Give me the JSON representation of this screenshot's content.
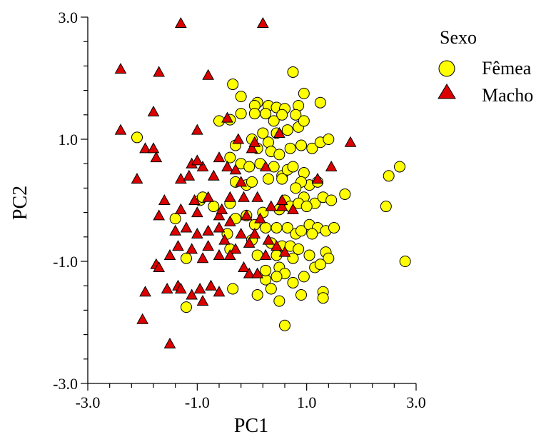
{
  "chart_data": {
    "type": "scatter",
    "title": "",
    "xlabel": "PC1",
    "ylabel": "PC2",
    "xlim": [
      -3.0,
      3.0
    ],
    "ylim": [
      -3.0,
      3.0
    ],
    "x_ticks": [
      -3.0,
      -1.0,
      1.0,
      3.0
    ],
    "y_ticks": [
      -3.0,
      -1.0,
      1.0,
      3.0
    ],
    "x_tick_labels": [
      "-3.0",
      "-1.0",
      "1.0",
      "3.0"
    ],
    "y_tick_labels": [
      "-3.0",
      "-1.0",
      "1.0",
      "3.0"
    ],
    "grid": false,
    "legend": {
      "title": "Sexo",
      "position": "top-right"
    },
    "series": [
      {
        "name": "Fêmea",
        "marker": "circle",
        "color": "#FFFF00",
        "points": [
          [
            -2.1,
            1.03
          ],
          [
            -0.35,
            1.9
          ],
          [
            -0.2,
            1.7
          ],
          [
            0.1,
            1.6
          ],
          [
            0.05,
            1.55
          ],
          [
            0.3,
            1.55
          ],
          [
            0.45,
            1.52
          ],
          [
            0.6,
            1.5
          ],
          [
            0.95,
            1.75
          ],
          [
            1.25,
            1.6
          ],
          [
            0.85,
            1.55
          ],
          [
            0.75,
            2.1
          ],
          [
            -0.6,
            1.3
          ],
          [
            -0.4,
            1.32
          ],
          [
            -0.2,
            1.42
          ],
          [
            0.05,
            1.42
          ],
          [
            0.25,
            1.42
          ],
          [
            0.4,
            1.3
          ],
          [
            0.55,
            1.4
          ],
          [
            0.8,
            1.4
          ],
          [
            0.85,
            1.2
          ],
          [
            0.65,
            1.15
          ],
          [
            0.95,
            1.3
          ],
          [
            0.2,
            1.1
          ],
          [
            0.45,
            1.1
          ],
          [
            0.3,
            0.95
          ],
          [
            -0.3,
            0.9
          ],
          [
            0.0,
            1.0
          ],
          [
            0.1,
            0.85
          ],
          [
            0.35,
            0.8
          ],
          [
            0.5,
            0.75
          ],
          [
            0.7,
            0.85
          ],
          [
            0.9,
            0.9
          ],
          [
            1.1,
            0.85
          ],
          [
            1.25,
            0.95
          ],
          [
            1.4,
            1.0
          ],
          [
            -0.4,
            0.7
          ],
          [
            -0.2,
            0.6
          ],
          [
            -0.05,
            0.55
          ],
          [
            0.15,
            0.6
          ],
          [
            0.4,
            0.55
          ],
          [
            0.55,
            0.4
          ],
          [
            0.65,
            0.5
          ],
          [
            0.75,
            0.55
          ],
          [
            0.95,
            0.45
          ],
          [
            1.05,
            0.25
          ],
          [
            1.2,
            0.3
          ],
          [
            0.9,
            0.3
          ],
          [
            -0.3,
            0.3
          ],
          [
            -0.1,
            0.25
          ],
          [
            0.0,
            0.3
          ],
          [
            0.3,
            0.35
          ],
          [
            0.55,
            0.35
          ],
          [
            0.8,
            0.2
          ],
          [
            0.95,
            0.05
          ],
          [
            1.15,
            -0.05
          ],
          [
            1.3,
            0.05
          ],
          [
            1.45,
            0.0
          ],
          [
            1.7,
            0.1
          ],
          [
            0.6,
            0.0
          ],
          [
            -0.95,
            0.0
          ],
          [
            -0.9,
            0.05
          ],
          [
            -1.4,
            -0.3
          ],
          [
            -0.7,
            -0.1
          ],
          [
            -0.4,
            -0.05
          ],
          [
            -0.3,
            -0.3
          ],
          [
            -0.1,
            -0.25
          ],
          [
            0.2,
            -0.2
          ],
          [
            0.5,
            -0.15
          ],
          [
            0.7,
            -0.1
          ],
          [
            0.85,
            -0.05
          ],
          [
            1.0,
            -0.1
          ],
          [
            0.45,
            -0.45
          ],
          [
            0.65,
            -0.45
          ],
          [
            0.8,
            -0.55
          ],
          [
            0.9,
            -0.5
          ],
          [
            1.05,
            -0.4
          ],
          [
            1.2,
            -0.45
          ],
          [
            1.35,
            -0.5
          ],
          [
            1.5,
            -0.45
          ],
          [
            1.1,
            -0.55
          ],
          [
            0.25,
            -0.45
          ],
          [
            0.05,
            -0.4
          ],
          [
            -0.45,
            -0.55
          ],
          [
            -0.4,
            -0.8
          ],
          [
            0.0,
            -0.65
          ],
          [
            0.35,
            -0.7
          ],
          [
            0.55,
            -0.75
          ],
          [
            0.7,
            -0.75
          ],
          [
            0.85,
            -0.8
          ],
          [
            1.35,
            -0.85
          ],
          [
            0.1,
            -0.9
          ],
          [
            0.45,
            -0.9
          ],
          [
            0.75,
            -0.95
          ],
          [
            1.05,
            -0.9
          ],
          [
            1.4,
            -0.95
          ],
          [
            2.5,
            0.4
          ],
          [
            2.7,
            0.55
          ],
          [
            2.45,
            -0.1
          ],
          [
            2.8,
            -1.0
          ],
          [
            1.15,
            -1.1
          ],
          [
            1.25,
            -1.05
          ],
          [
            0.5,
            -1.1
          ],
          [
            0.6,
            -1.2
          ],
          [
            0.95,
            -1.25
          ],
          [
            1.3,
            -1.5
          ],
          [
            -1.2,
            -0.95
          ],
          [
            -0.35,
            -1.45
          ],
          [
            0.25,
            -1.3
          ],
          [
            0.45,
            -1.25
          ],
          [
            0.1,
            -1.55
          ],
          [
            0.35,
            -1.45
          ],
          [
            0.75,
            -1.35
          ],
          [
            0.9,
            -1.55
          ],
          [
            1.3,
            -1.6
          ],
          [
            -1.2,
            -1.75
          ],
          [
            0.6,
            -2.05
          ],
          [
            0.5,
            -1.65
          ],
          [
            0.25,
            -1.15
          ]
        ]
      },
      {
        "name": "Macho",
        "marker": "triangle",
        "color": "#DD0000",
        "points": [
          [
            -1.3,
            2.9
          ],
          [
            0.2,
            2.9
          ],
          [
            -2.4,
            2.15
          ],
          [
            -1.7,
            2.1
          ],
          [
            -0.8,
            2.05
          ],
          [
            -1.8,
            1.45
          ],
          [
            -2.4,
            1.15
          ],
          [
            -1.0,
            1.15
          ],
          [
            -0.45,
            1.35
          ],
          [
            -0.25,
            1.0
          ],
          [
            0.0,
            0.85
          ],
          [
            -1.95,
            0.85
          ],
          [
            -1.8,
            0.85
          ],
          [
            -1.75,
            0.7
          ],
          [
            -0.6,
            0.7
          ],
          [
            -1.1,
            0.6
          ],
          [
            -0.9,
            0.55
          ],
          [
            -0.7,
            0.4
          ],
          [
            -0.45,
            0.55
          ],
          [
            -0.3,
            0.5
          ],
          [
            -2.1,
            0.35
          ],
          [
            -1.3,
            0.35
          ],
          [
            -1.15,
            0.4
          ],
          [
            0.5,
            1.1
          ],
          [
            -1.6,
            0.0
          ],
          [
            -1.05,
            0.0
          ],
          [
            -0.8,
            0.05
          ],
          [
            -0.4,
            0.05
          ],
          [
            -0.15,
            0.05
          ],
          [
            0.1,
            0.05
          ],
          [
            0.35,
            -0.1
          ],
          [
            0.55,
            -0.1
          ],
          [
            -1.7,
            -0.25
          ],
          [
            -1.3,
            -0.15
          ],
          [
            -1.0,
            -0.2
          ],
          [
            -0.6,
            -0.25
          ],
          [
            -0.4,
            -0.35
          ],
          [
            -0.1,
            -0.25
          ],
          [
            0.15,
            -0.3
          ],
          [
            -1.4,
            -0.5
          ],
          [
            -1.2,
            -0.45
          ],
          [
            -1.0,
            -0.55
          ],
          [
            -0.8,
            -0.5
          ],
          [
            -0.6,
            -0.45
          ],
          [
            -0.2,
            -0.55
          ],
          [
            0.05,
            -0.55
          ],
          [
            -1.35,
            -0.75
          ],
          [
            -1.1,
            -0.8
          ],
          [
            -0.8,
            -0.75
          ],
          [
            -0.5,
            -0.65
          ],
          [
            -0.3,
            -0.8
          ],
          [
            -0.05,
            -0.7
          ],
          [
            0.25,
            -0.9
          ],
          [
            0.45,
            -0.75
          ],
          [
            -1.75,
            -1.05
          ],
          [
            -1.5,
            -0.9
          ],
          [
            -0.9,
            -0.95
          ],
          [
            -0.6,
            -0.9
          ],
          [
            -0.4,
            -0.9
          ],
          [
            -0.15,
            -1.1
          ],
          [
            -0.05,
            -1.2
          ],
          [
            0.1,
            -1.2
          ],
          [
            -1.7,
            -1.1
          ],
          [
            -1.55,
            -1.45
          ],
          [
            -1.35,
            -1.4
          ],
          [
            -1.3,
            -1.45
          ],
          [
            -0.95,
            -1.45
          ],
          [
            -0.75,
            -1.4
          ],
          [
            -0.6,
            -1.5
          ],
          [
            -1.95,
            -1.5
          ],
          [
            -1.1,
            -1.55
          ],
          [
            -0.9,
            -1.65
          ],
          [
            1.2,
            0.35
          ],
          [
            1.45,
            0.55
          ],
          [
            1.8,
            0.95
          ],
          [
            0.55,
            0.0
          ],
          [
            0.75,
            -0.15
          ],
          [
            0.05,
            0.95
          ],
          [
            -0.2,
            0.3
          ],
          [
            0.25,
            0.55
          ],
          [
            -1.0,
            0.65
          ],
          [
            -0.55,
            -0.15
          ],
          [
            0.3,
            -0.65
          ],
          [
            0.6,
            -0.85
          ],
          [
            -1.5,
            -2.35
          ],
          [
            -2.0,
            -1.95
          ]
        ]
      }
    ]
  }
}
